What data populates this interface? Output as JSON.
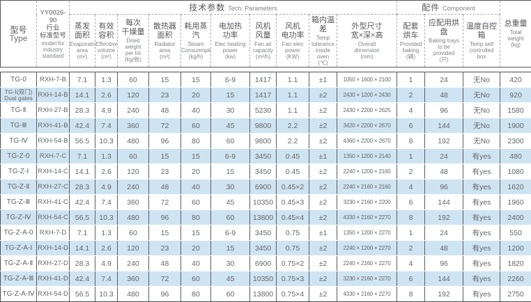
{
  "colors": {
    "stripe_blue": "#cfe4f3",
    "text_gray": "#58595b",
    "border_dark": "#55565a",
    "border_dashed": "#a8aaad"
  },
  "chart_data": {
    "type": "table",
    "group_headers": {
      "tech": {
        "zh": "技术参数",
        "en": "Tech. Parameters"
      },
      "component": {
        "zh": "配件",
        "en": "Component"
      }
    },
    "columns": [
      {
        "zh": "型号",
        "en": "Type"
      },
      {
        "zh": "YY0026-90\n行业\n标准型号",
        "en": "model for\nindustry\nstandard"
      },
      {
        "zh": "蒸发\n面积",
        "en": "Evaporative\narea\n(m²)"
      },
      {
        "zh": "有效\n容积",
        "en": "Effecitive\nvolume\n(m³)"
      },
      {
        "zh": "每次\n干燥量",
        "en": "Dried weight\nper lot\n(kg/批)"
      },
      {
        "zh": "散热器\n面积",
        "en": "Radiator\narea\n(m²)"
      },
      {
        "zh": "耗用蒸汽",
        "en": "Steam\nConsunmption\n(kg/h)"
      },
      {
        "zh": "电加热\n功率",
        "en": "Elec heating\npower\n(kw)"
      },
      {
        "zh": "风机\n风量",
        "en": "Fan air\ncapacity\n(m³/h)"
      },
      {
        "zh": "风机\n电功率",
        "en": "Fan elec\npower\n(KW)"
      },
      {
        "zh": "箱内温差",
        "en": "Temp\ntolerance\ninside oven\n(℃)"
      },
      {
        "zh": "外型尺寸\n宽×深×高",
        "en": "Overall\ndimension\n(mm)"
      },
      {
        "zh": "配套\n烘车",
        "en": "Provided\nbaking\n(辆)"
      },
      {
        "zh": "应配用烘盘",
        "en": "Baking trays\nto be\nprovided\n(只)"
      },
      {
        "zh": "温度自控箱",
        "en": "Temp self\ncontrolled\nbox"
      },
      {
        "zh": "总重量",
        "en": "Total\nweight\n(kg)"
      }
    ],
    "rows": [
      [
        "TG-0",
        "RXH-7-B",
        "7.1",
        "1.3",
        "60",
        "15",
        "15",
        "6-9",
        "1417",
        "1.1",
        "±1",
        "1050 × 1600 × 2100",
        "1",
        "24",
        "无No",
        "420"
      ],
      [
        "TG-Ⅰ(双门)\nDual gates",
        "RXH-14-B",
        "14.1",
        "2.6",
        "120",
        "23",
        "20",
        "15",
        "1417",
        "1.1",
        "±2",
        "2430 × 1200 × 2430",
        "2",
        "48",
        "无No",
        "920"
      ],
      [
        "TG-Ⅱ",
        "RXH-27-B",
        "28.3",
        "4.9",
        "240",
        "48",
        "40",
        "30",
        "5230",
        "1.1",
        "±2",
        "2430 × 2200 × 2625",
        "4",
        "96",
        "无No",
        "1580"
      ],
      [
        "TG-Ⅲ",
        "RXH-41-B",
        "42.4",
        "7.4",
        "360",
        "72",
        "60",
        "45",
        "9800",
        "2.2",
        "±2",
        "3420 × 2200 × 2670",
        "6",
        "144",
        "无No",
        "1900"
      ],
      [
        "TG-Ⅳ",
        "RXH-54-B",
        "56.5",
        "10.3",
        "480",
        "96",
        "80",
        "60",
        "9800",
        "2.2",
        "±2",
        "4360 × 2200 × 2670",
        "8",
        "192",
        "无No",
        "2300"
      ],
      [
        "TG-Z-0",
        "RXH-7-C",
        "7.1",
        "1.3",
        "60",
        "15",
        "15",
        "6-9",
        "3450",
        "0.45",
        "±1",
        "1350 × 1200 × 2140",
        "1",
        "24",
        "有yes",
        "480"
      ],
      [
        "TG-Z-Ⅰ",
        "RXH-14-C",
        "14.1",
        "2.6",
        "120",
        "23",
        "20",
        "15",
        "3450",
        "0.45",
        "±2",
        "2240 × 1200 × 2160",
        "2",
        "48",
        "有yes",
        "1080"
      ],
      [
        "TG-Z-Ⅱ",
        "RXH-27-C",
        "28.3",
        "4.9",
        "240",
        "48",
        "40",
        "30",
        "6900",
        "0.45×2",
        "±2",
        "2240 × 2160 × 2160",
        "4",
        "96",
        "有yes",
        "1620"
      ],
      [
        "TG-Z-Ⅲ",
        "RXH-41-C",
        "42.4",
        "7.4",
        "360",
        "72",
        "60",
        "45",
        "10350",
        "0.45×3",
        "±2",
        "3230 × 2160 × 2200",
        "6",
        "144",
        "有yes",
        "1960"
      ],
      [
        "TG-Z-Ⅳ",
        "RXH-54-C",
        "56.5",
        "10.3",
        "480",
        "96",
        "80",
        "60",
        "13800",
        "0.45×4",
        "±2",
        "4330 × 2160 × 2270",
        "8",
        "192",
        "有yes",
        "2400"
      ],
      [
        "TG-Z-A-0",
        "RXH-7-D",
        "7.1",
        "1.3",
        "60",
        "15",
        "15",
        "6-9",
        "3450",
        "0.75",
        "±1",
        "1350 × 1200 × 2270",
        "1",
        "24",
        "有yes",
        "550"
      ],
      [
        "TG-Z-A-Ⅰ",
        "RXH-14-D",
        "14.1",
        "2.6",
        "120",
        "23",
        "20",
        "15",
        "3450",
        "0.75",
        "±2",
        "2240 × 1200 × 2270",
        "2",
        "48",
        "有yes",
        "1200"
      ],
      [
        "TG-Z-A-Ⅱ",
        "RXH-27-D",
        "28.3",
        "4.9",
        "240",
        "48",
        "40",
        "30",
        "6900",
        "0.75×2",
        "±2",
        "2240 × 2160 × 2270",
        "4",
        "96",
        "有yes",
        "1820"
      ],
      [
        "TG-Z-A-Ⅲ",
        "RXH-41-D",
        "42.4",
        "7.4",
        "360",
        "72",
        "60",
        "45",
        "10350",
        "0.75×3",
        "±2",
        "3230 × 2160 × 2270",
        "6",
        "144",
        "有yes",
        "2260"
      ],
      [
        "TG-Z-A-Ⅳ",
        "RXH-54-D",
        "56.5",
        "10.3",
        "480",
        "96",
        "80",
        "60",
        "13800",
        "0.75×4",
        "±2",
        "4330 × 2160 × 2270",
        "8",
        "192",
        "有yes",
        "2750"
      ]
    ]
  }
}
